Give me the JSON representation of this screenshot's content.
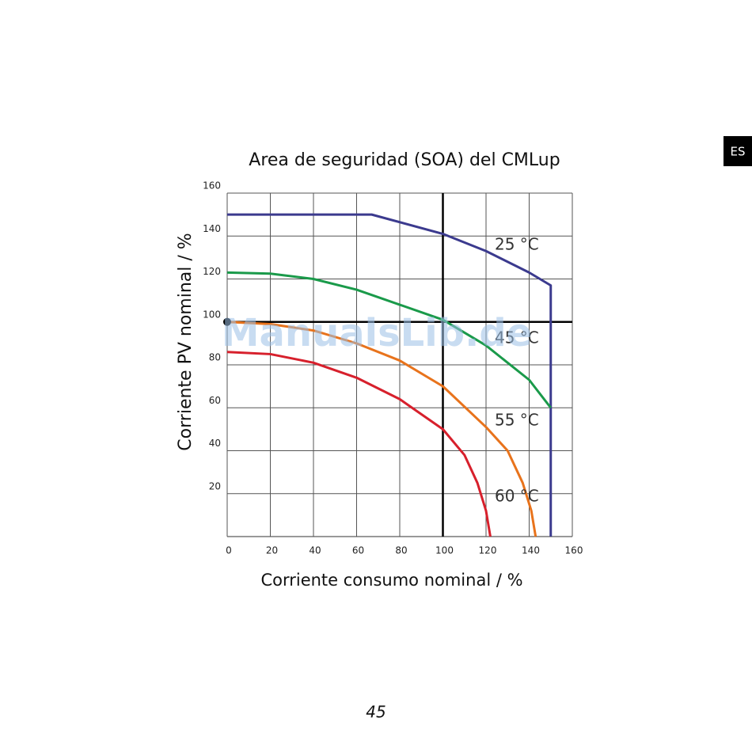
{
  "page": {
    "tab": "ES",
    "page_number": "45",
    "watermark": "ManualsLib.de"
  },
  "chart_data": {
    "type": "line",
    "title": "Area de seguridad (SOA) del CMLup",
    "xlabel": "Corriente consumo nominal / %",
    "ylabel": "Corriente PV nominal / %",
    "xlim": [
      0,
      160
    ],
    "ylim": [
      0,
      160
    ],
    "xticks": [
      0,
      20,
      40,
      60,
      80,
      100,
      120,
      140,
      160
    ],
    "yticks": [
      20,
      40,
      60,
      80,
      100,
      120,
      140,
      160
    ],
    "grid": true,
    "reference_lines": {
      "x": 100,
      "y": 100
    },
    "marker": {
      "x": 0,
      "y": 100
    },
    "series": [
      {
        "name": "25 °C",
        "color": "#3b3a8e",
        "x": [
          0,
          67,
          100,
          120,
          140,
          150,
          150
        ],
        "values": [
          150,
          150,
          141,
          133,
          123,
          117,
          0
        ]
      },
      {
        "name": "45 °C",
        "color": "#1a9a4a",
        "x": [
          0,
          20,
          40,
          60,
          80,
          100,
          120,
          140,
          150
        ],
        "values": [
          123,
          122.5,
          120,
          115,
          108,
          101,
          89,
          73,
          60
        ]
      },
      {
        "name": "55 °C",
        "color": "#e8731c",
        "x": [
          0,
          20,
          40,
          60,
          80,
          100,
          120,
          130,
          137,
          141,
          143
        ],
        "values": [
          100,
          99,
          96,
          90,
          82,
          70,
          51,
          40,
          25,
          12,
          0
        ]
      },
      {
        "name": "60 °C",
        "color": "#d7202c",
        "x": [
          0,
          20,
          40,
          60,
          80,
          100,
          110,
          116,
          120,
          122
        ],
        "values": [
          86,
          85,
          81,
          74,
          64,
          50,
          38,
          25,
          12,
          0
        ]
      }
    ]
  }
}
